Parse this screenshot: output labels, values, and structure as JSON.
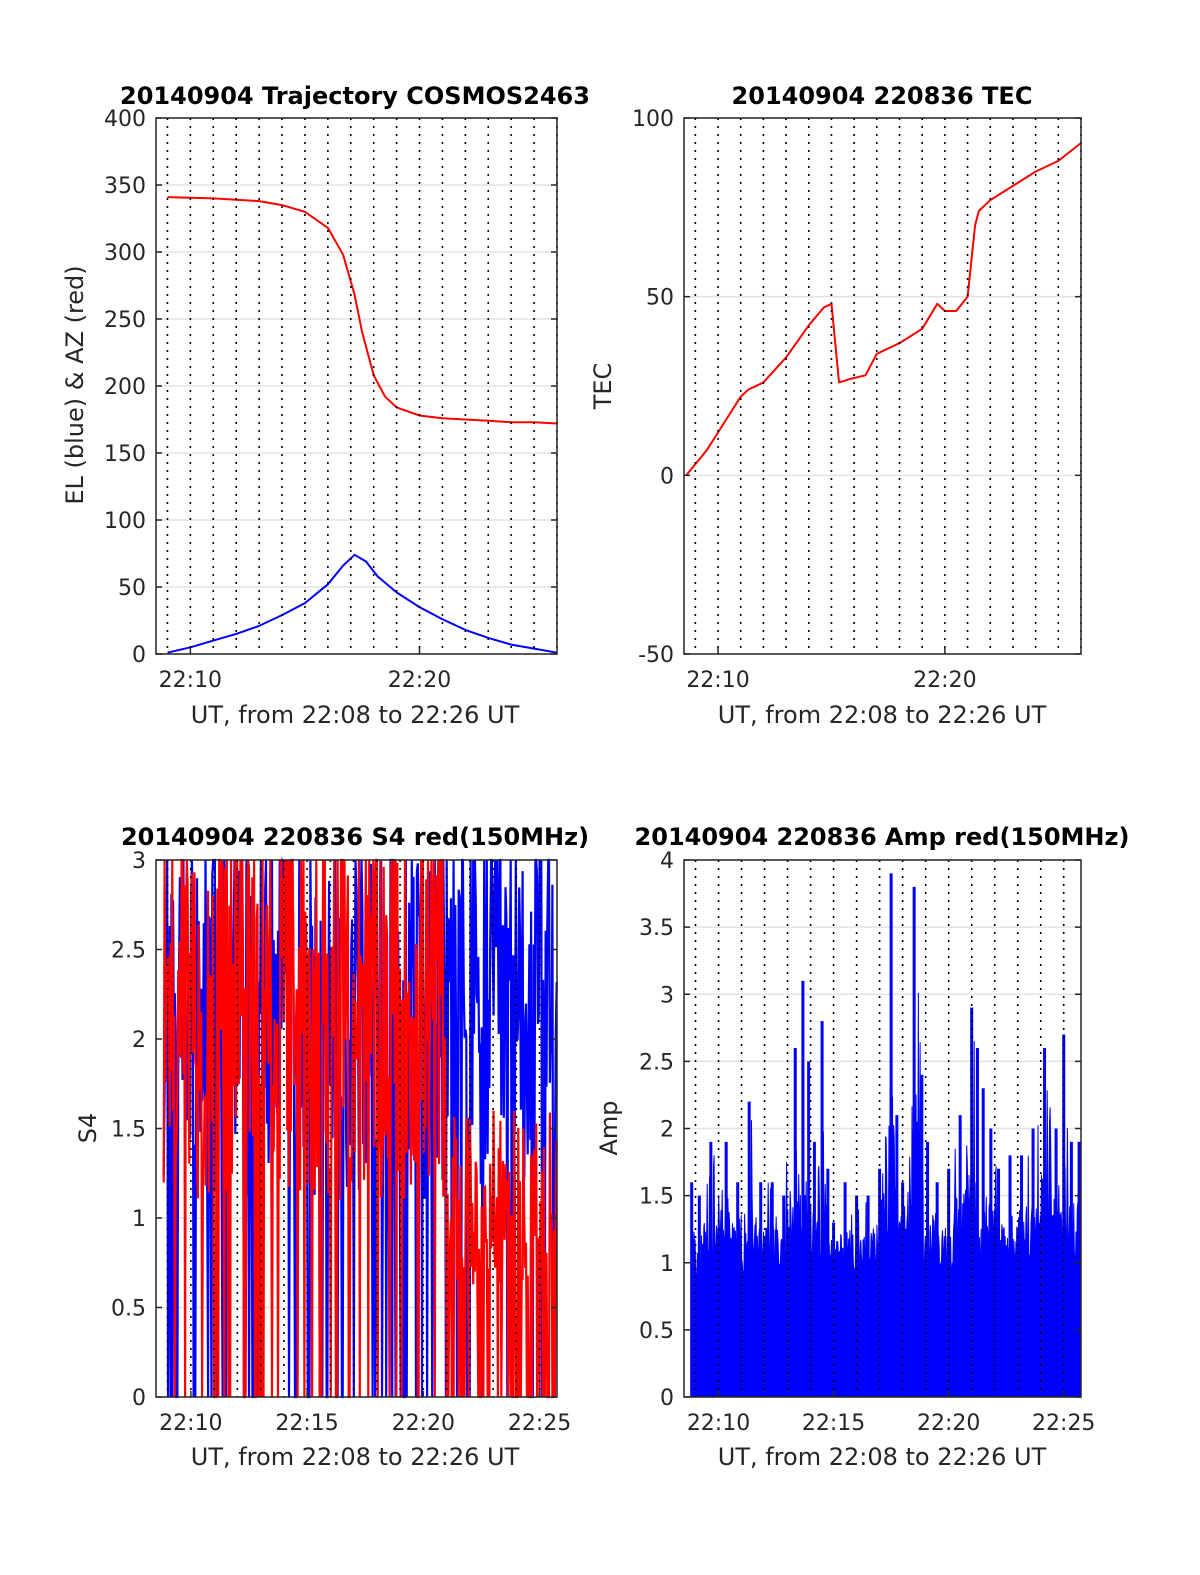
{
  "chart_data": [
    {
      "type": "line",
      "title": "20140904 Trajectory COSMOS2463",
      "xlabel": "UT, from 22:08 to 22:26 UT",
      "ylabel": "EL (blue) & AZ (red)",
      "xlim": [
        "22:08:30",
        "22:26:00"
      ],
      "ylim": [
        0,
        400
      ],
      "x_ticks": [
        "22:10",
        "22:20"
      ],
      "y_ticks": [
        "0",
        "50",
        "100",
        "150",
        "200",
        "250",
        "300",
        "350",
        "400"
      ],
      "grid": "horizontal solid at y ticks; vertical dotted every minute",
      "series": [
        {
          "color": "#ff0000",
          "x": [
            "22:09:00",
            "22:11:00",
            "22:13:00",
            "22:14:00",
            "22:15:00",
            "22:16:00",
            "22:16:40",
            "22:17:10",
            "22:17:30",
            "22:18:00",
            "22:18:30",
            "22:19:00",
            "22:20:00",
            "22:21:00",
            "22:22:00",
            "22:23:00",
            "22:24:00",
            "22:25:00",
            "22:26:00"
          ],
          "values": [
            341,
            340,
            338,
            335,
            330,
            318,
            298,
            268,
            240,
            208,
            192,
            184,
            178,
            176,
            175,
            174,
            173,
            173,
            172
          ]
        },
        {
          "color": "#0000ff",
          "x": [
            "22:09:00",
            "22:10:00",
            "22:11:00",
            "22:12:00",
            "22:13:00",
            "22:14:00",
            "22:15:00",
            "22:16:00",
            "22:16:40",
            "22:17:10",
            "22:17:40",
            "22:18:10",
            "22:19:00",
            "22:20:00",
            "22:21:00",
            "22:22:00",
            "22:23:00",
            "22:24:00",
            "22:25:00",
            "22:26:00"
          ],
          "values": [
            1,
            5,
            10,
            15,
            21,
            29,
            38,
            52,
            66,
            74,
            69,
            58,
            46,
            35,
            26,
            18,
            12,
            7,
            4,
            1
          ]
        }
      ]
    },
    {
      "type": "line",
      "title": "20140904 220836 TEC",
      "xlabel": "UT, from 22:08 to 22:26 UT",
      "ylabel": "TEC",
      "xlim": [
        "22:08:30",
        "22:26:00"
      ],
      "ylim": [
        -50,
        100
      ],
      "x_ticks": [
        "22:10",
        "22:20"
      ],
      "y_ticks": [
        "-50",
        "0",
        "50",
        "100"
      ],
      "grid": "horizontal solid at y ticks; vertical dotted every minute",
      "series": [
        {
          "color": "#ff0000",
          "x": [
            "22:08:36",
            "22:09:30",
            "22:10:00",
            "22:11:00",
            "22:11:20",
            "22:12:00",
            "22:13:00",
            "22:14:00",
            "22:14:40",
            "22:15:00",
            "22:15:20",
            "22:15:50",
            "22:16:30",
            "22:17:00",
            "22:18:00",
            "22:19:00",
            "22:19:40",
            "22:20:00",
            "22:20:30",
            "22:21:00",
            "22:21:20",
            "22:21:30",
            "22:22:00",
            "22:23:00",
            "22:24:00",
            "22:25:00",
            "22:26:00"
          ],
          "values": [
            0,
            7,
            12,
            22,
            24,
            26,
            33,
            42,
            47,
            48,
            26,
            27,
            28,
            34,
            37,
            41,
            48,
            46,
            46,
            50,
            70,
            74,
            77,
            81,
            85,
            88,
            93
          ]
        }
      ]
    },
    {
      "type": "line",
      "title": "20140904 220836 S4 red(150MHz)",
      "xlabel": "UT, from 22:08 to 22:26 UT",
      "ylabel": "S4",
      "xlim": [
        "22:08:30",
        "22:25:45"
      ],
      "ylim": [
        0,
        3
      ],
      "x_ticks": [
        "22:10",
        "22:15",
        "22:20",
        "22:25"
      ],
      "y_ticks": [
        "0",
        "0.5",
        "1",
        "1.5",
        "2",
        "2.5",
        "3"
      ],
      "grid": "horizontal solid at y ticks; vertical dotted every minute",
      "series": [
        {
          "color": "#0000ff",
          "description_range": [
            0,
            3
          ]
        },
        {
          "color": "#ff0000",
          "description_range": [
            0,
            3
          ]
        }
      ]
    },
    {
      "type": "bar",
      "title": "20140904 220836 Amp red(150MHz)",
      "xlabel": "UT, from 22:08 to 22:26 UT",
      "ylabel": "Amp",
      "xlim": [
        "22:08:30",
        "22:25:45"
      ],
      "ylim": [
        0,
        4
      ],
      "x_ticks": [
        "22:10",
        "22:15",
        "22:20",
        "22:25"
      ],
      "y_ticks": [
        "0",
        "0.5",
        "1",
        "1.5",
        "2",
        "2.5",
        "3",
        "3.5",
        "4"
      ],
      "grid": "horizontal solid at y ticks; vertical dotted every minute",
      "series": [
        {
          "color": "#0000ff",
          "x": [
            "22:08:50",
            "22:09:10",
            "22:09:40",
            "22:10:20",
            "22:10:50",
            "22:11:20",
            "22:11:50",
            "22:12:20",
            "22:12:50",
            "22:13:20",
            "22:13:40",
            "22:13:55",
            "22:14:10",
            "22:14:30",
            "22:14:45",
            "22:15:00",
            "22:15:30",
            "22:16:00",
            "22:16:30",
            "22:17:00",
            "22:17:30",
            "22:17:45",
            "22:18:00",
            "22:18:30",
            "22:18:50",
            "22:19:05",
            "22:19:30",
            "22:20:00",
            "22:20:30",
            "22:21:00",
            "22:21:15",
            "22:21:30",
            "22:21:50",
            "22:22:10",
            "22:22:40",
            "22:23:10",
            "22:23:40",
            "22:24:10",
            "22:24:40",
            "22:25:00",
            "22:25:20",
            "22:25:40"
          ],
          "values": [
            1.6,
            1.5,
            1.9,
            1.9,
            1.6,
            2.2,
            1.6,
            1.6,
            1.5,
            2.6,
            3.1,
            2.5,
            1.9,
            2.8,
            1.7,
            1.3,
            1.6,
            1.5,
            1.5,
            1.7,
            3.9,
            2.1,
            1.6,
            3.8,
            2.4,
            1.9,
            1.6,
            1.7,
            2.1,
            2.9,
            2.6,
            2.3,
            2.0,
            1.7,
            1.8,
            1.8,
            2.0,
            2.6,
            2.0,
            2.7,
            1.9,
            1.9
          ]
        }
      ]
    }
  ]
}
